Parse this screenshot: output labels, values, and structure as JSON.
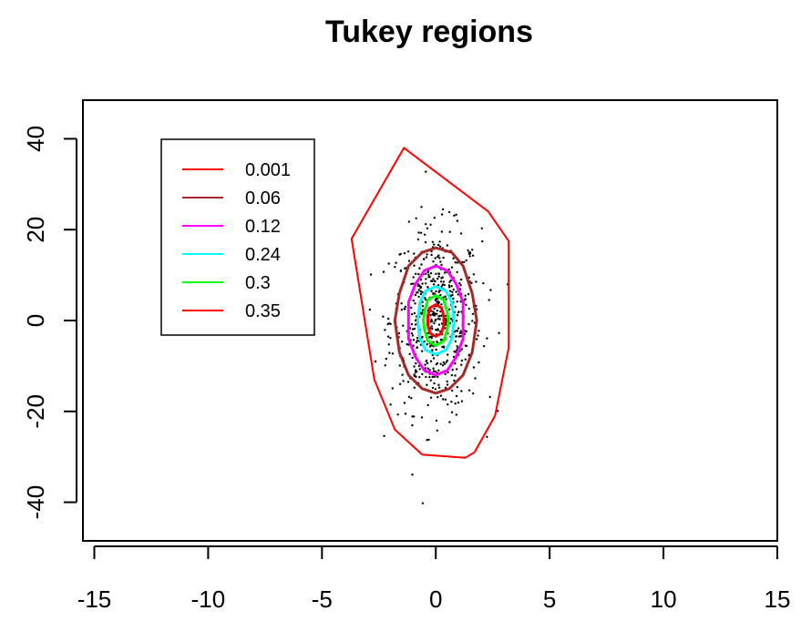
{
  "chart_data": {
    "type": "scatter",
    "title": "Tukey regions",
    "xlabel": "",
    "ylabel": "",
    "xlim": [
      -15.5,
      15
    ],
    "ylim": [
      -48.5,
      48.5
    ],
    "x_ticks": [
      -15,
      -10,
      -5,
      0,
      5,
      10,
      15
    ],
    "x_tick_labels": [
      "-15",
      "-10",
      "-5",
      "0",
      "5",
      "10",
      "15"
    ],
    "y_ticks": [
      -40,
      -20,
      0,
      20,
      40
    ],
    "y_tick_labels": [
      "-40",
      "-20",
      "0",
      "20",
      "40"
    ],
    "grid": false,
    "legend_position": "top-left",
    "point_count": 600,
    "point_color": "#000000",
    "point_distribution": {
      "x_mean": 0,
      "x_sd": 1.0,
      "y_mean": 0,
      "y_sd": 10.0
    },
    "series": [
      {
        "name": "0.001",
        "color": "#ff0000",
        "line_width": 2,
        "points": [
          [
            -1.4,
            38
          ],
          [
            2.3,
            24
          ],
          [
            3.2,
            17.5
          ],
          [
            3.2,
            -6
          ],
          [
            2.6,
            -21
          ],
          [
            1.7,
            -29
          ],
          [
            1.3,
            -30.2
          ],
          [
            -0.6,
            -29.5
          ],
          [
            -1.8,
            -24
          ],
          [
            -2.7,
            -13
          ],
          [
            -3.7,
            18
          ]
        ]
      },
      {
        "name": "0.06",
        "color": "#a52a2a",
        "line_width": 3,
        "points": [
          [
            0,
            16
          ],
          [
            0.7,
            15
          ],
          [
            1.2,
            12
          ],
          [
            1.6,
            6
          ],
          [
            1.8,
            0
          ],
          [
            1.6,
            -7
          ],
          [
            1.2,
            -12
          ],
          [
            0.6,
            -15
          ],
          [
            0,
            -16
          ],
          [
            -0.6,
            -15
          ],
          [
            -1.2,
            -12
          ],
          [
            -1.6,
            -7
          ],
          [
            -1.8,
            0
          ],
          [
            -1.6,
            6
          ],
          [
            -1.2,
            12
          ],
          [
            -0.6,
            15
          ]
        ]
      },
      {
        "name": "0.12",
        "color": "#ff00ff",
        "line_width": 3,
        "points": [
          [
            0,
            12
          ],
          [
            0.5,
            11
          ],
          [
            0.9,
            8
          ],
          [
            1.2,
            4
          ],
          [
            1.2,
            -4
          ],
          [
            0.9,
            -8
          ],
          [
            0.5,
            -11
          ],
          [
            0,
            -12
          ],
          [
            -0.5,
            -11
          ],
          [
            -0.9,
            -8
          ],
          [
            -1.2,
            -4
          ],
          [
            -1.2,
            4
          ],
          [
            -0.9,
            8
          ],
          [
            -0.5,
            11
          ]
        ]
      },
      {
        "name": "0.24",
        "color": "#00ffff",
        "line_width": 3,
        "points": [
          [
            0,
            7.5
          ],
          [
            0.45,
            6.5
          ],
          [
            0.7,
            4
          ],
          [
            0.8,
            0
          ],
          [
            0.7,
            -4
          ],
          [
            0.45,
            -6.5
          ],
          [
            0,
            -7.5
          ],
          [
            -0.45,
            -6.5
          ],
          [
            -0.7,
            -4
          ],
          [
            -0.8,
            0
          ],
          [
            -0.7,
            4
          ],
          [
            -0.45,
            6.5
          ]
        ]
      },
      {
        "name": "0.3",
        "color": "#00ff00",
        "line_width": 3,
        "points": [
          [
            0,
            5.5
          ],
          [
            0.35,
            4.5
          ],
          [
            0.5,
            2
          ],
          [
            0.55,
            0
          ],
          [
            0.5,
            -2
          ],
          [
            0.35,
            -4.5
          ],
          [
            0,
            -5.5
          ],
          [
            -0.35,
            -4.5
          ],
          [
            -0.5,
            -2
          ],
          [
            -0.55,
            0
          ],
          [
            -0.5,
            2
          ],
          [
            -0.35,
            4.5
          ]
        ]
      },
      {
        "name": "0.35",
        "color": "#ff0000",
        "line_width": 3,
        "points": [
          [
            0,
            3.5
          ],
          [
            0.25,
            2.8
          ],
          [
            0.35,
            1
          ],
          [
            0.35,
            -1
          ],
          [
            0.25,
            -2.8
          ],
          [
            0,
            -3.5
          ],
          [
            -0.25,
            -2.8
          ],
          [
            -0.35,
            -1
          ],
          [
            -0.35,
            1
          ],
          [
            -0.25,
            2.8
          ]
        ]
      }
    ]
  }
}
